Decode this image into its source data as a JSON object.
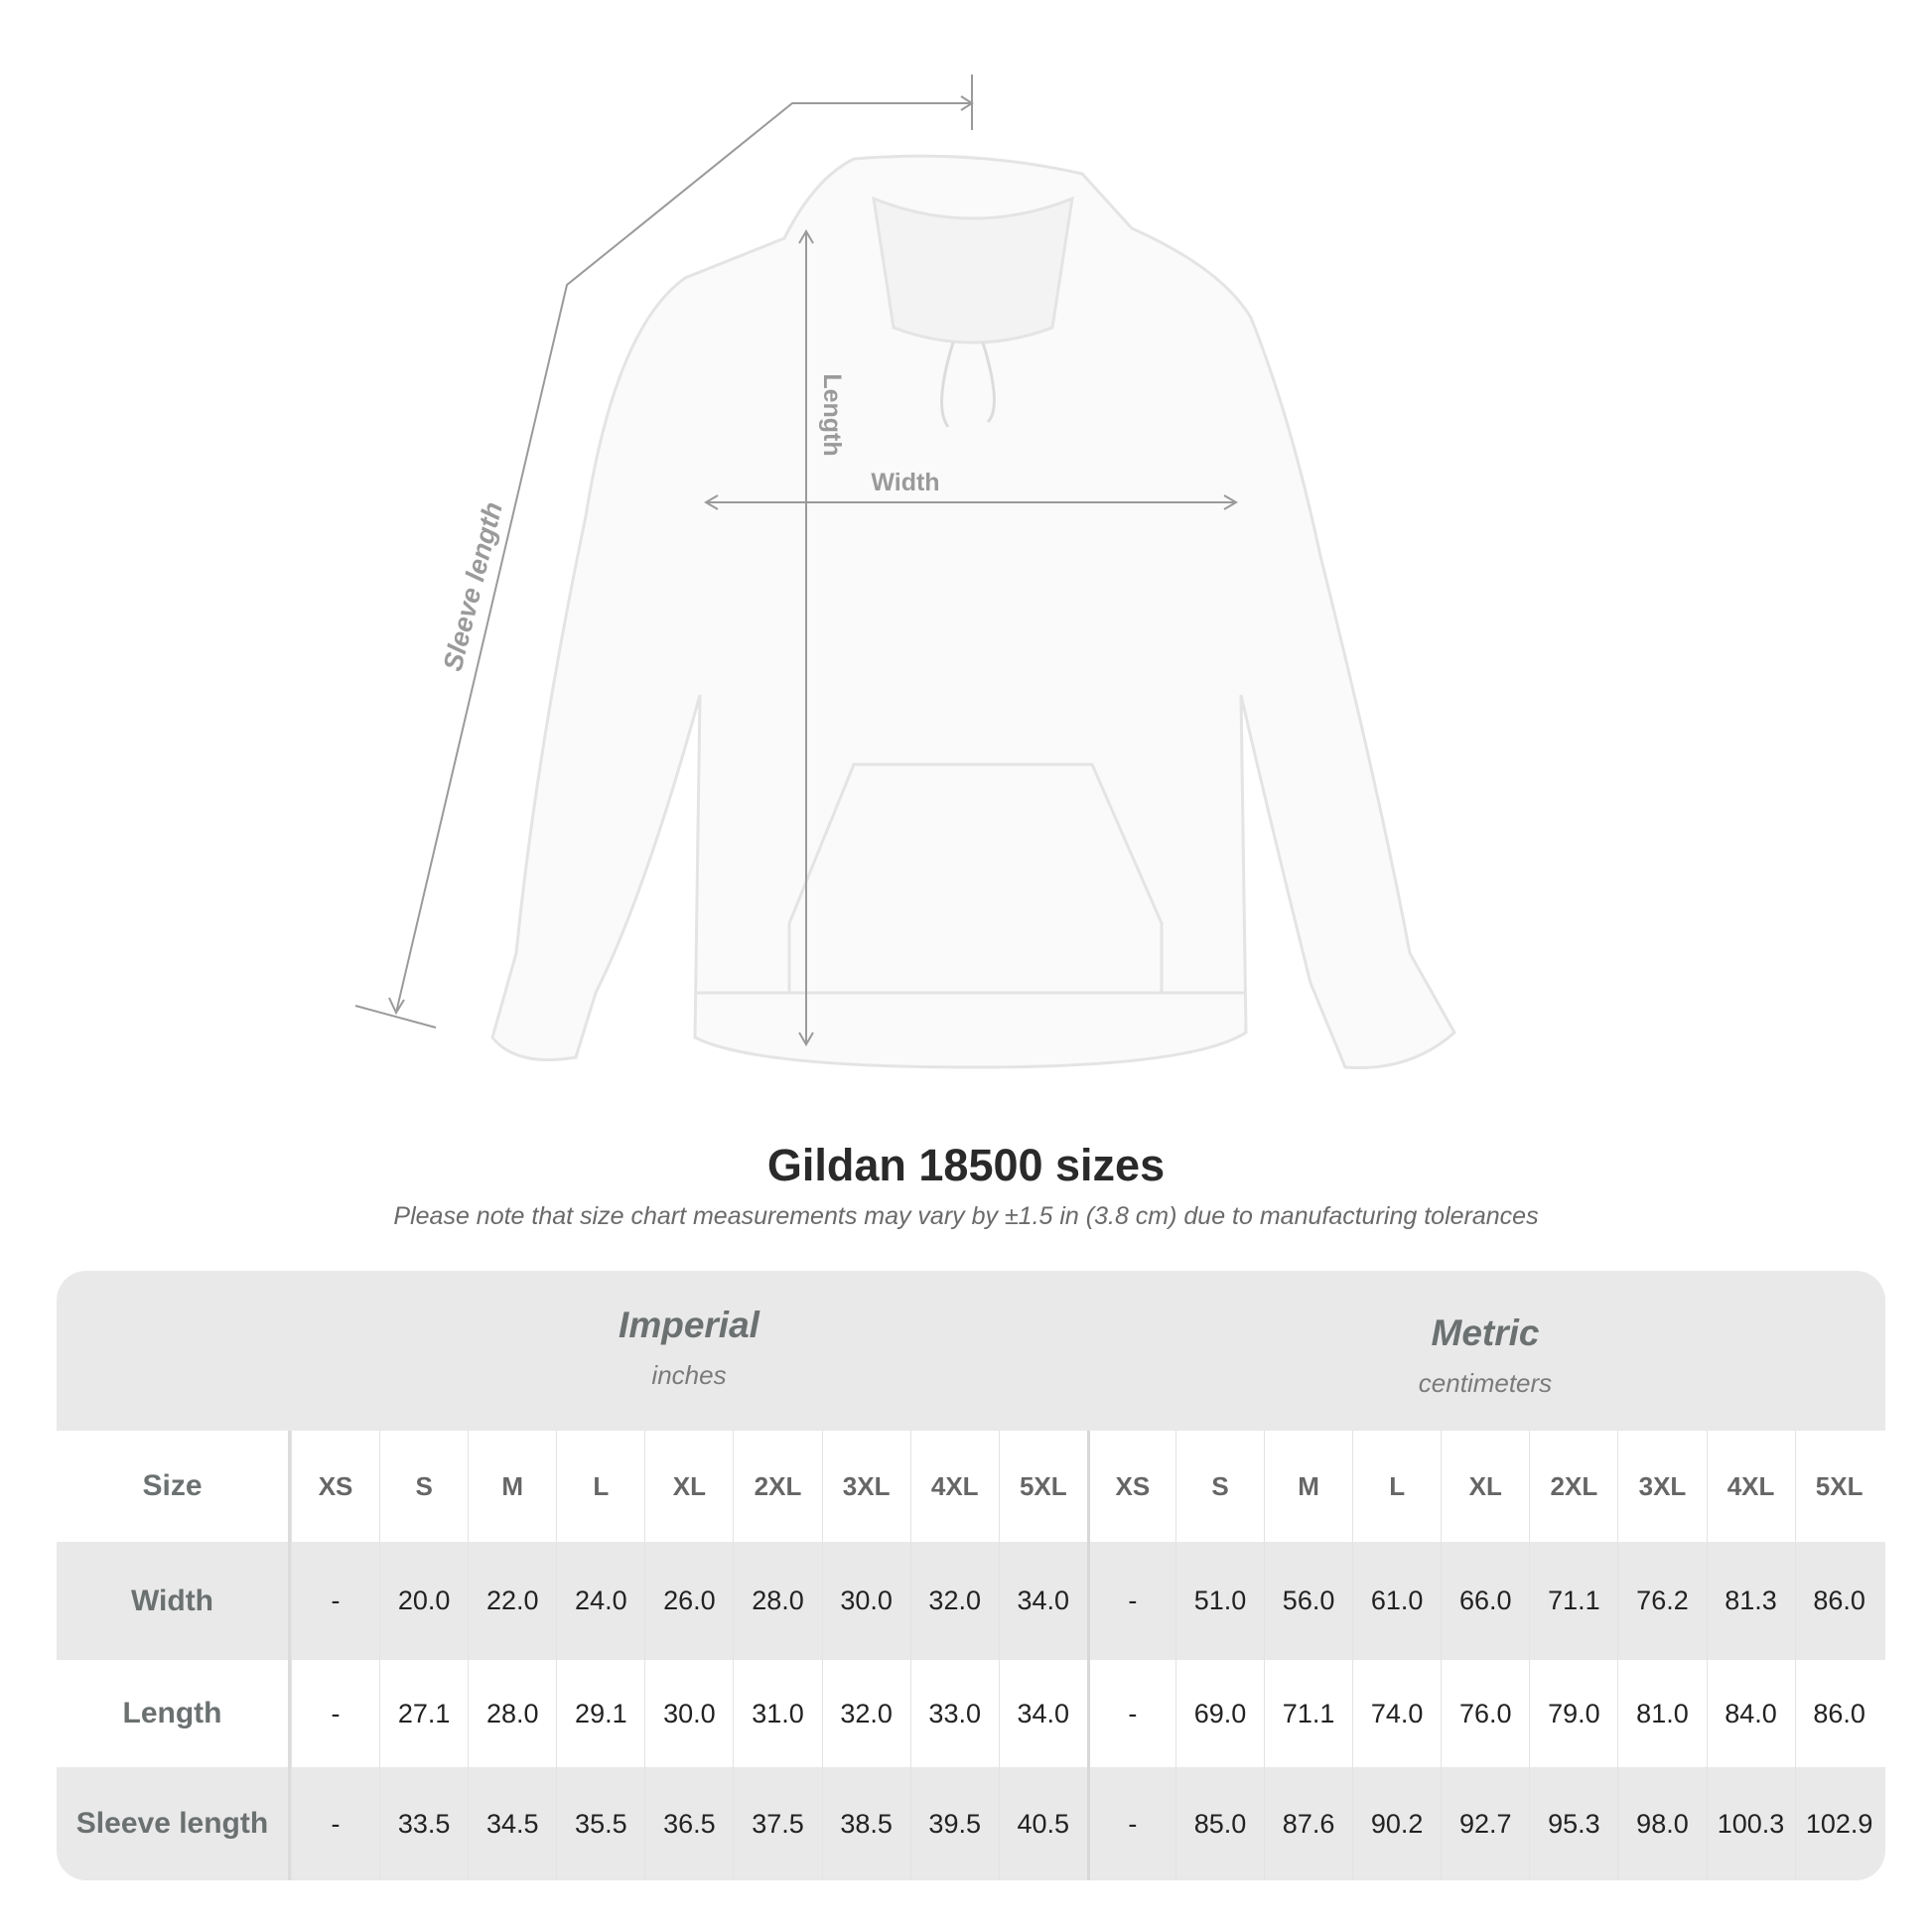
{
  "diagram": {
    "labels": {
      "sleeve": "Sleeve length",
      "length": "Length",
      "width": "Width"
    },
    "line_color": "#9a9a9a"
  },
  "title": "Gildan 18500 sizes",
  "note": "Please note that size chart measurements may vary by ±1.5 in (3.8 cm) due to manufacturing tolerances",
  "table": {
    "imperial": {
      "name": "Imperial",
      "unit": "inches"
    },
    "metric": {
      "name": "Metric",
      "unit": "centimeters"
    },
    "size_label": "Size",
    "sizes": [
      "XS",
      "S",
      "M",
      "L",
      "XL",
      "2XL",
      "3XL",
      "4XL",
      "5XL"
    ],
    "rows": [
      {
        "label": "Width",
        "imperial": [
          "-",
          "20.0",
          "22.0",
          "24.0",
          "26.0",
          "28.0",
          "30.0",
          "32.0",
          "34.0"
        ],
        "metric": [
          "-",
          "51.0",
          "56.0",
          "61.0",
          "66.0",
          "71.1",
          "76.2",
          "81.3",
          "86.0"
        ]
      },
      {
        "label": "Length",
        "imperial": [
          "-",
          "27.1",
          "28.0",
          "29.1",
          "30.0",
          "31.0",
          "32.0",
          "33.0",
          "34.0"
        ],
        "metric": [
          "-",
          "69.0",
          "71.1",
          "74.0",
          "76.0",
          "79.0",
          "81.0",
          "84.0",
          "86.0"
        ]
      },
      {
        "label": "Sleeve length",
        "imperial": [
          "-",
          "33.5",
          "34.5",
          "35.5",
          "36.5",
          "37.5",
          "38.5",
          "39.5",
          "40.5"
        ],
        "metric": [
          "-",
          "85.0",
          "87.6",
          "90.2",
          "92.7",
          "95.3",
          "98.0",
          "100.3",
          "102.9"
        ]
      }
    ]
  }
}
